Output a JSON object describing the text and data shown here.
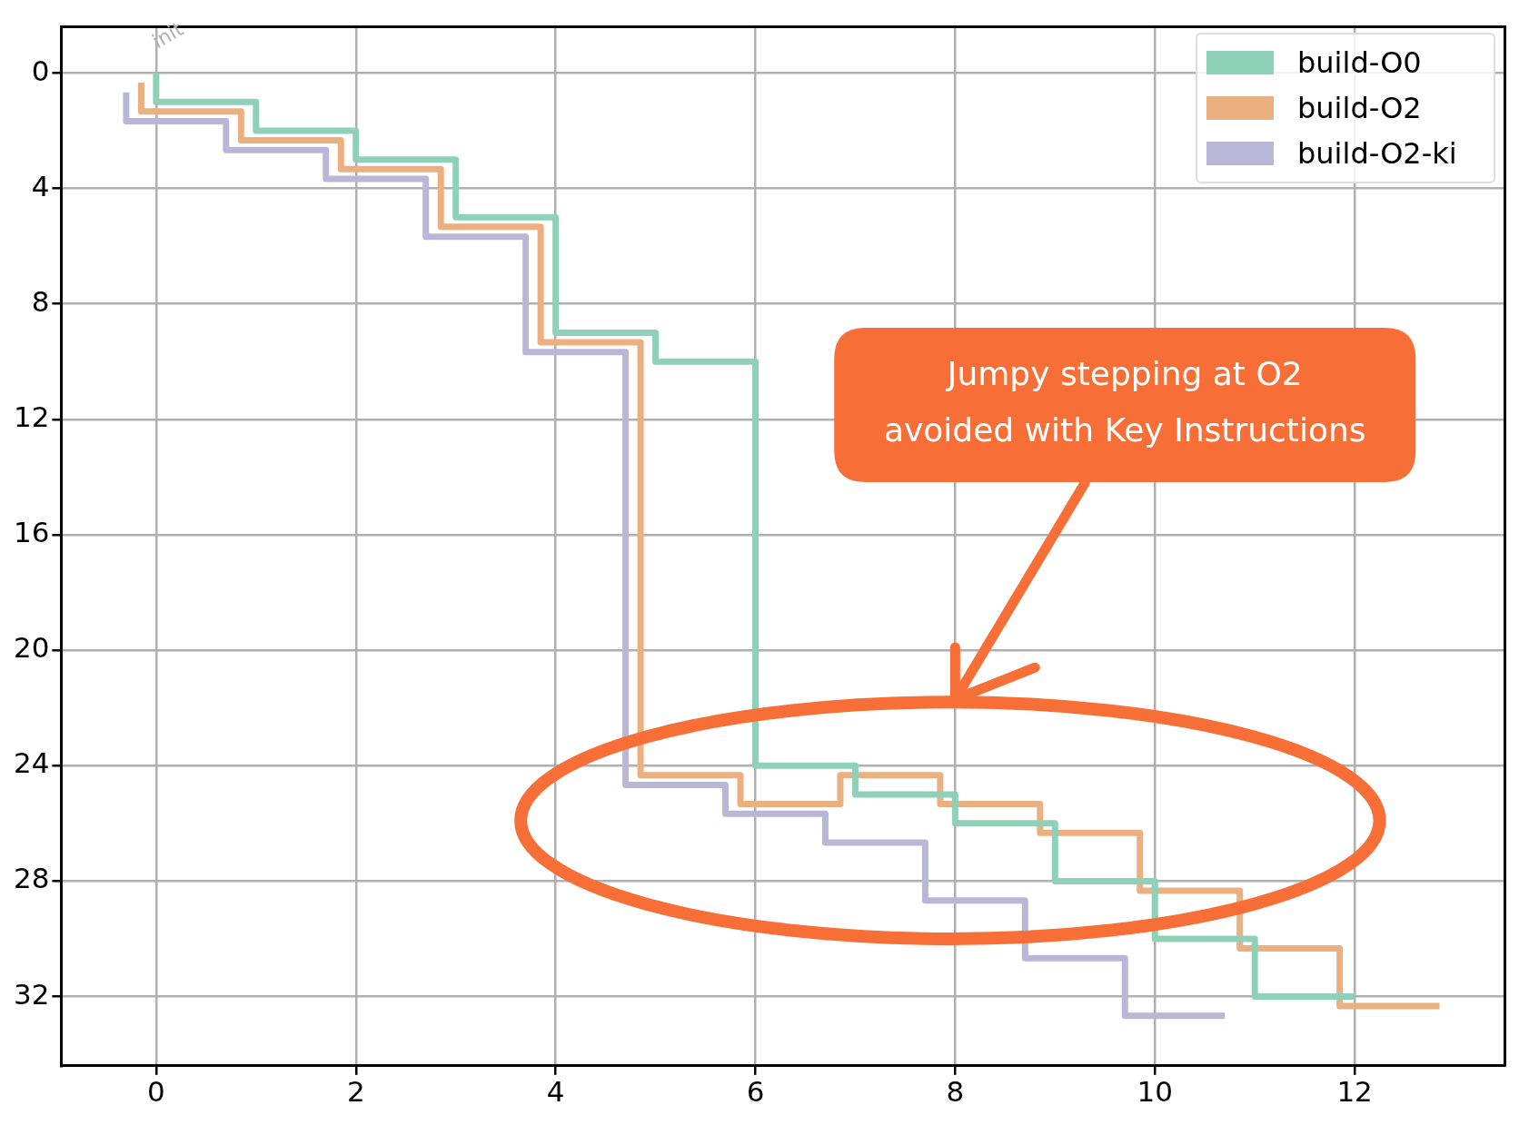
{
  "chart_data": {
    "type": "step",
    "xlim": [
      -0.95,
      13.5
    ],
    "ylim": [
      34.4,
      -1.6
    ],
    "xticks": [
      0,
      2,
      4,
      6,
      8,
      10,
      12
    ],
    "yticks": [
      0,
      4,
      8,
      12,
      16,
      20,
      24,
      28,
      32
    ],
    "grid": true,
    "legend": "top right",
    "annotations": [
      {
        "text": "init",
        "x": 0,
        "y": 0
      },
      "Jumpy stepping at O2\navoided with Key Instructions"
    ],
    "series": [
      {
        "name": "build-O0",
        "color": "#8fd0b8",
        "x": [
          0,
          1,
          2,
          3,
          4,
          5,
          6,
          7,
          8,
          9,
          10,
          11,
          12
        ],
        "values": [
          0,
          1,
          2,
          3,
          5,
          9,
          10,
          24,
          25,
          26,
          28,
          30,
          32
        ]
      },
      {
        "name": "build-O2",
        "color": "#ebaf80",
        "x": [
          -0.15,
          0.85,
          1.85,
          2.85,
          3.85,
          4.85,
          5.85,
          6.85,
          7.85,
          8.85,
          9.85,
          10.85,
          11.85,
          12.85
        ],
        "values": [
          0.33,
          1.33,
          2.33,
          3.33,
          5.33,
          9.33,
          24.33,
          25.33,
          24.33,
          25.33,
          26.33,
          28.33,
          30.33,
          32.33
        ]
      },
      {
        "name": "build-O2-ki",
        "color": "#b9b7d8",
        "x": [
          -0.3,
          0.7,
          1.7,
          2.7,
          3.7,
          4.7,
          5.7,
          6.7,
          7.7,
          8.7,
          9.7,
          10.7
        ],
        "values": [
          0.67,
          1.67,
          2.67,
          3.67,
          5.67,
          9.67,
          24.67,
          25.67,
          26.67,
          28.67,
          30.67,
          32.67
        ]
      }
    ]
  }
}
